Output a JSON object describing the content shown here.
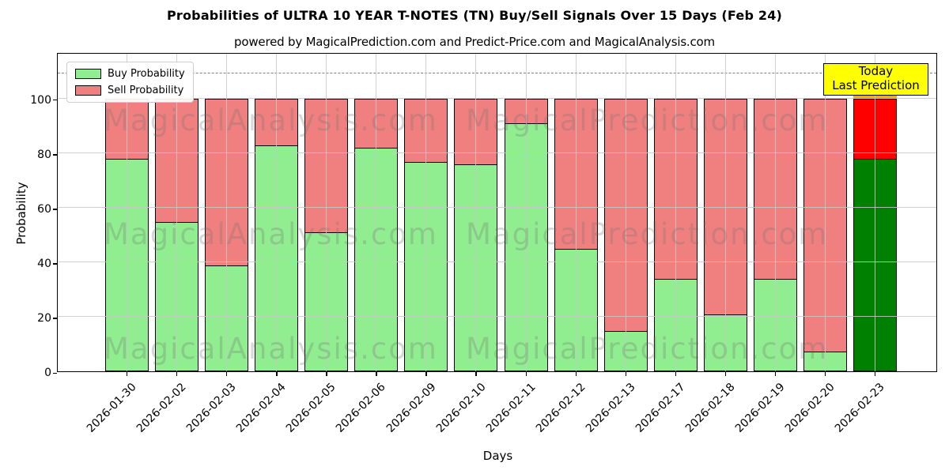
{
  "title": "Probabilities of ULTRA 10 YEAR T-NOTES (TN) Buy/Sell Signals Over 15 Days (Feb 24)",
  "subtitle": "powered by MagicalPrediction.com and Predict-Price.com and MagicalAnalysis.com",
  "legend": {
    "items": [
      {
        "label": "Buy Probability",
        "color": "#90EE90"
      },
      {
        "label": "Sell Probability",
        "color": "#F08080"
      }
    ]
  },
  "annotation": {
    "line1": "Today",
    "line2": "Last Prediction",
    "bg_color": "#FFFF00"
  },
  "watermarks": {
    "left_text": "MagicalAnalysis.com",
    "right_text": "MagicalPrediction.com"
  },
  "chart_data": {
    "type": "bar",
    "stacked": true,
    "title": "Probabilities of ULTRA 10 YEAR T-NOTES (TN) Buy/Sell Signals Over 15 Days (Feb 24)",
    "xlabel": "Days",
    "ylabel": "Probability",
    "categories": [
      "2026-01-30",
      "2026-02-02",
      "2026-02-03",
      "2026-02-04",
      "2026-02-05",
      "2026-02-06",
      "2026-02-09",
      "2026-02-10",
      "2026-02-11",
      "2026-02-12",
      "2026-02-13",
      "2026-02-17",
      "2026-02-18",
      "2026-02-19",
      "2026-02-20",
      "2026-02-23"
    ],
    "series": [
      {
        "name": "Buy Probability",
        "color": "#90EE90",
        "values": [
          78,
          55,
          39,
          83,
          51,
          82,
          77,
          76,
          91,
          45,
          15,
          34,
          21,
          34,
          7.5,
          78
        ]
      },
      {
        "name": "Sell Probability",
        "color": "#F08080",
        "values": [
          22,
          45,
          61,
          17,
          49,
          18,
          23,
          24,
          9,
          55,
          85,
          66,
          79,
          66,
          92.5,
          22
        ]
      }
    ],
    "bar_total": 100,
    "last_bar": {
      "buy_color": "#008000",
      "sell_color": "#FF0000",
      "cap_color": "#FFA500"
    },
    "yticks": [
      0,
      20,
      40,
      60,
      80,
      100
    ],
    "ylim": [
      0,
      117
    ],
    "dashed_line_y": 110,
    "grid": true,
    "legend_position": "upper left"
  }
}
